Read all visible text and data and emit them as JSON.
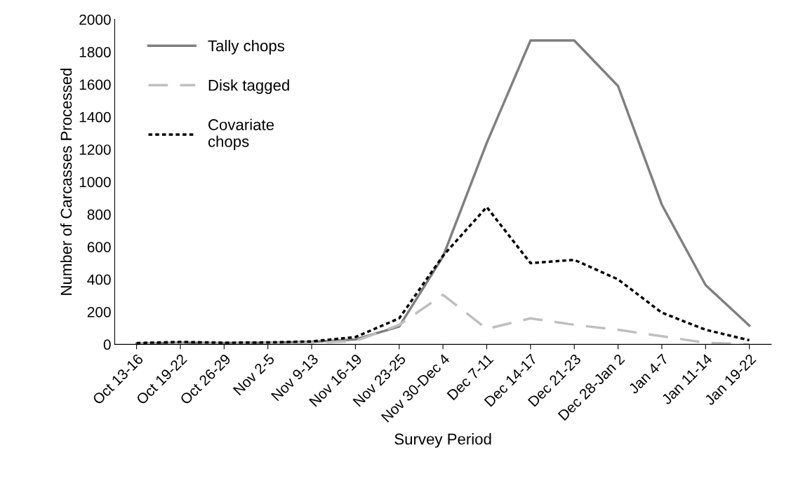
{
  "chart_data": {
    "type": "line",
    "xlabel": "Survey Period",
    "ylabel": "Number of Carcasses Processed",
    "categories": [
      "Oct 13-16",
      "Oct 19-22",
      "Oct 26-29",
      "Nov 2-5",
      "Nov 9-13",
      "Nov 16-19",
      "Nov 23-25",
      "Nov 30-Dec 4",
      "Dec 7-11",
      "Dec 14-17",
      "Dec 21-23",
      "Dec 28-Jan 2",
      "Jan 4-7",
      "Jan 11-14",
      "Jan 19-22"
    ],
    "series": [
      {
        "name": "Tally chops",
        "color": "#7f7f7f",
        "line_style": "solid",
        "values": [
          5,
          10,
          8,
          10,
          15,
          30,
          110,
          540,
          1240,
          1870,
          1870,
          1590,
          860,
          365,
          115
        ]
      },
      {
        "name": "Disk tagged",
        "color": "#bfbfbf",
        "line_style": "dashed",
        "values": [
          2,
          5,
          5,
          8,
          10,
          20,
          120,
          305,
          95,
          160,
          120,
          90,
          50,
          10,
          0
        ]
      },
      {
        "name": "Covariate\nchops",
        "color": "#000000",
        "line_style": "dotted",
        "values": [
          8,
          15,
          10,
          12,
          18,
          45,
          160,
          545,
          845,
          500,
          520,
          400,
          195,
          90,
          25
        ]
      }
    ],
    "ylim": [
      0,
      2000
    ],
    "yticks": [
      0,
      200,
      400,
      600,
      800,
      1000,
      1200,
      1400,
      1600,
      1800,
      2000
    ],
    "grid": false,
    "legend": "top left",
    "marker": "none"
  }
}
